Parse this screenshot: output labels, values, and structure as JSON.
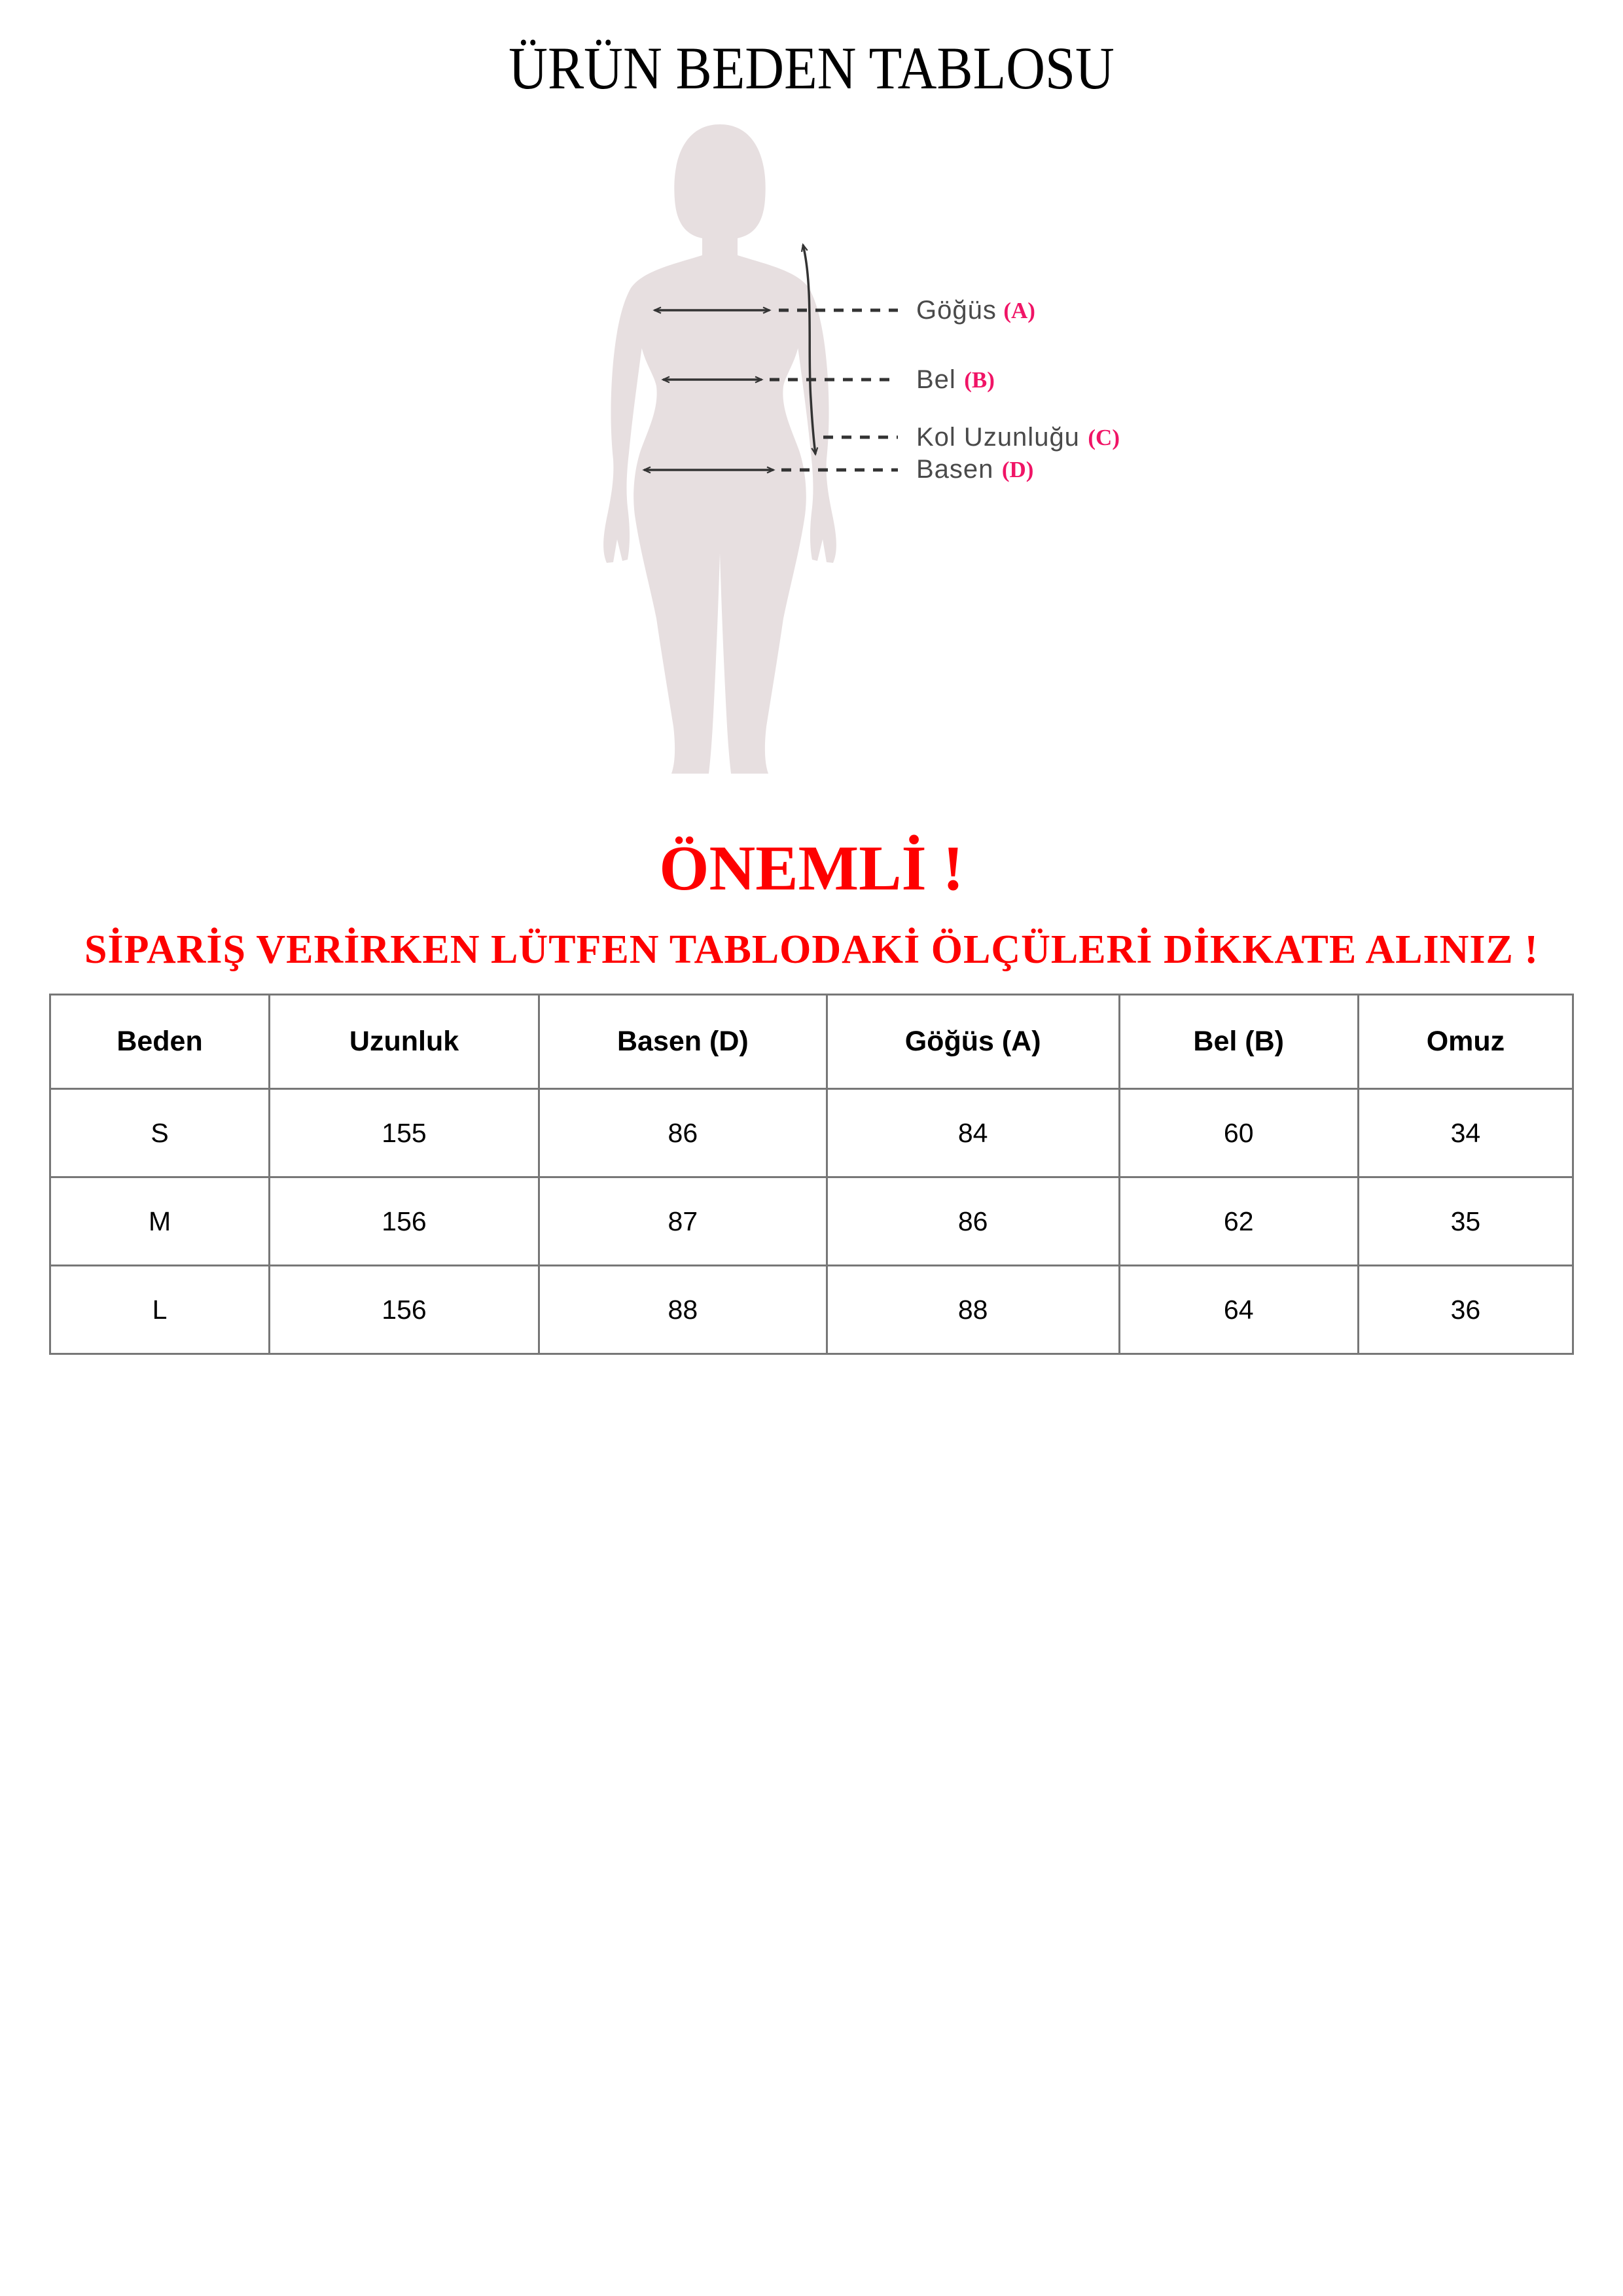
{
  "page": {
    "title": "ÜRÜN BEDEN TABLOSU",
    "important_heading": "ÖNEMLİ !",
    "warning_text": "SİPARİŞ VERİRKEN LÜTFEN TABLODAKİ ÖLÇÜLERİ DİKKATE ALINIZ !"
  },
  "figure": {
    "labels": [
      {
        "name": "Göğüs",
        "code": "(A)"
      },
      {
        "name": "Bel",
        "code": "(B)"
      },
      {
        "name": "Kol Uzunluğu",
        "code": "(C)"
      },
      {
        "name": "Basen",
        "code": "(D)"
      }
    ]
  },
  "colors": {
    "warning_red": "#fe0000",
    "code_pink": "#f01466",
    "silhouette": "#e7dfe0",
    "measure_line": "#333333",
    "table_border": "#777777"
  },
  "chart_data": {
    "type": "table",
    "columns": [
      "Beden",
      "Uzunluk",
      "Basen (D)",
      "Göğüs (A)",
      "Bel (B)",
      "Omuz"
    ],
    "rows": [
      [
        "S",
        "155",
        "86",
        "84",
        "60",
        "34"
      ],
      [
        "M",
        "156",
        "87",
        "86",
        "62",
        "35"
      ],
      [
        "L",
        "156",
        "88",
        "88",
        "64",
        "36"
      ]
    ]
  }
}
